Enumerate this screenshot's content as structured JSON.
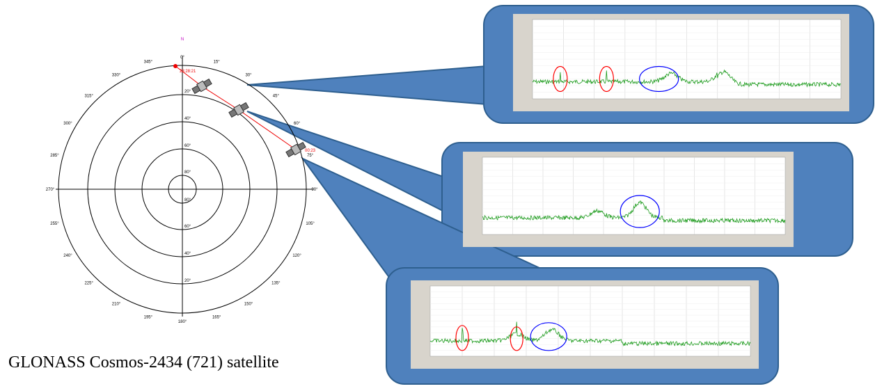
{
  "caption": "GLONASS Cosmos-2434 (721) satellite",
  "polar_plot": {
    "north_label": "N",
    "azimuth_labels": [
      "0°",
      "15°",
      "30°",
      "45°",
      "60°",
      "75°",
      "90°",
      "105°",
      "120°",
      "135°",
      "150°",
      "165°",
      "180°",
      "195°",
      "210°",
      "225°",
      "240°",
      "255°",
      "270°",
      "285°",
      "300°",
      "315°",
      "330°",
      "345°"
    ],
    "elevation_labels": [
      "80°",
      "60°",
      "40°",
      "20°"
    ],
    "start_time": "23:28:21",
    "end_time": "00:23"
  }
}
